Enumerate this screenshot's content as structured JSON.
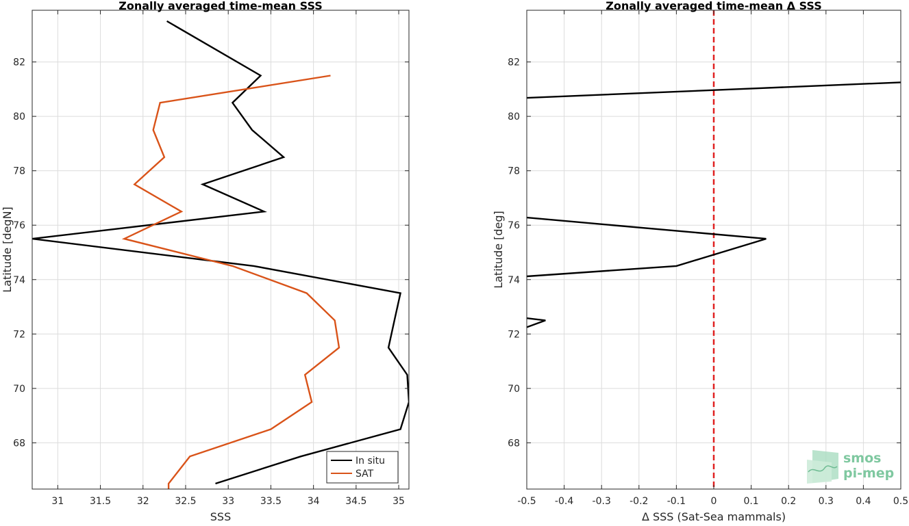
{
  "chart_data": [
    {
      "type": "line",
      "title": "Zonally averaged time-mean SSS",
      "xlabel": "SSS",
      "ylabel": "Latitude [degN]",
      "xlim": [
        30.7,
        35.12
      ],
      "ylim": [
        66.3,
        83.9
      ],
      "xticks": [
        "31",
        "31.5",
        "32",
        "32.5",
        "33",
        "33.5",
        "34",
        "34.5",
        "35"
      ],
      "xtick_values": [
        31,
        31.5,
        32,
        32.5,
        33,
        33.5,
        34,
        34.5,
        35
      ],
      "yticks": [
        "68",
        "70",
        "72",
        "74",
        "76",
        "78",
        "80",
        "82"
      ],
      "ytick_values": [
        68,
        70,
        72,
        74,
        76,
        78,
        80,
        82
      ],
      "grid": true,
      "legend_location": "bottom-right",
      "series": [
        {
          "name": "In situ",
          "color": "#000000",
          "x": [
            32.85,
            33.85,
            35.02,
            35.12,
            35.1,
            34.88,
            34.95,
            35.02,
            33.3,
            30.7,
            33.42,
            32.7,
            33.65,
            33.28,
            33.05,
            33.38,
            32.28
          ],
          "y": [
            66.5,
            67.5,
            68.5,
            69.5,
            70.5,
            71.5,
            72.5,
            73.5,
            74.5,
            75.5,
            76.5,
            77.5,
            78.5,
            79.5,
            80.5,
            81.5,
            83.5
          ]
        },
        {
          "name": "SAT",
          "color": "#d95319",
          "x": [
            32.3,
            32.3,
            32.55,
            33.5,
            33.98,
            33.9,
            34.3,
            34.25,
            33.92,
            33.05,
            31.78,
            32.45,
            31.9,
            32.25,
            32.12,
            32.2,
            34.2
          ],
          "y": [
            66.3,
            66.5,
            67.5,
            68.5,
            69.5,
            70.5,
            71.5,
            72.5,
            73.5,
            74.5,
            75.5,
            76.5,
            77.5,
            78.5,
            79.5,
            80.5,
            81.5
          ]
        }
      ]
    },
    {
      "type": "line",
      "title": "Zonally averaged time-mean Δ SSS",
      "xlabel": "Δ SSS (Sat-Sea mammals)",
      "ylabel": "Latitude [deg]",
      "xlim": [
        -0.5,
        0.5
      ],
      "ylim": [
        66.3,
        83.9
      ],
      "xticks": [
        "-0.5",
        "-0.4",
        "-0.3",
        "-0.2",
        "-0.1",
        "0",
        "0.1",
        "0.2",
        "0.3",
        "0.4",
        "0.5"
      ],
      "xtick_values": [
        -0.5,
        -0.4,
        -0.3,
        -0.2,
        -0.1,
        0,
        0.1,
        0.2,
        0.3,
        0.4,
        0.5
      ],
      "yticks": [
        "68",
        "70",
        "72",
        "74",
        "76",
        "78",
        "80",
        "82"
      ],
      "ytick_values": [
        68,
        70,
        72,
        74,
        76,
        78,
        80,
        82
      ],
      "grid": true,
      "reference_line": {
        "x": 0,
        "color": "#e02020",
        "style": "dashed"
      },
      "series": [
        {
          "color": "#000000",
          "x": [
            -0.5,
            -0.45,
            -0.5
          ],
          "y": [
            72.25,
            72.5,
            72.58
          ]
        },
        {
          "color": "#000000",
          "x": [
            -0.5,
            -0.1,
            0.14,
            -0.5
          ],
          "y": [
            74.12,
            74.5,
            75.5,
            76.28
          ]
        },
        {
          "color": "#000000",
          "x": [
            -0.5,
            0.5
          ],
          "y": [
            80.68,
            81.25
          ]
        }
      ]
    }
  ],
  "logo": {
    "line1": "smos",
    "line2": "pi-mep",
    "color": "#7fc8a0"
  }
}
